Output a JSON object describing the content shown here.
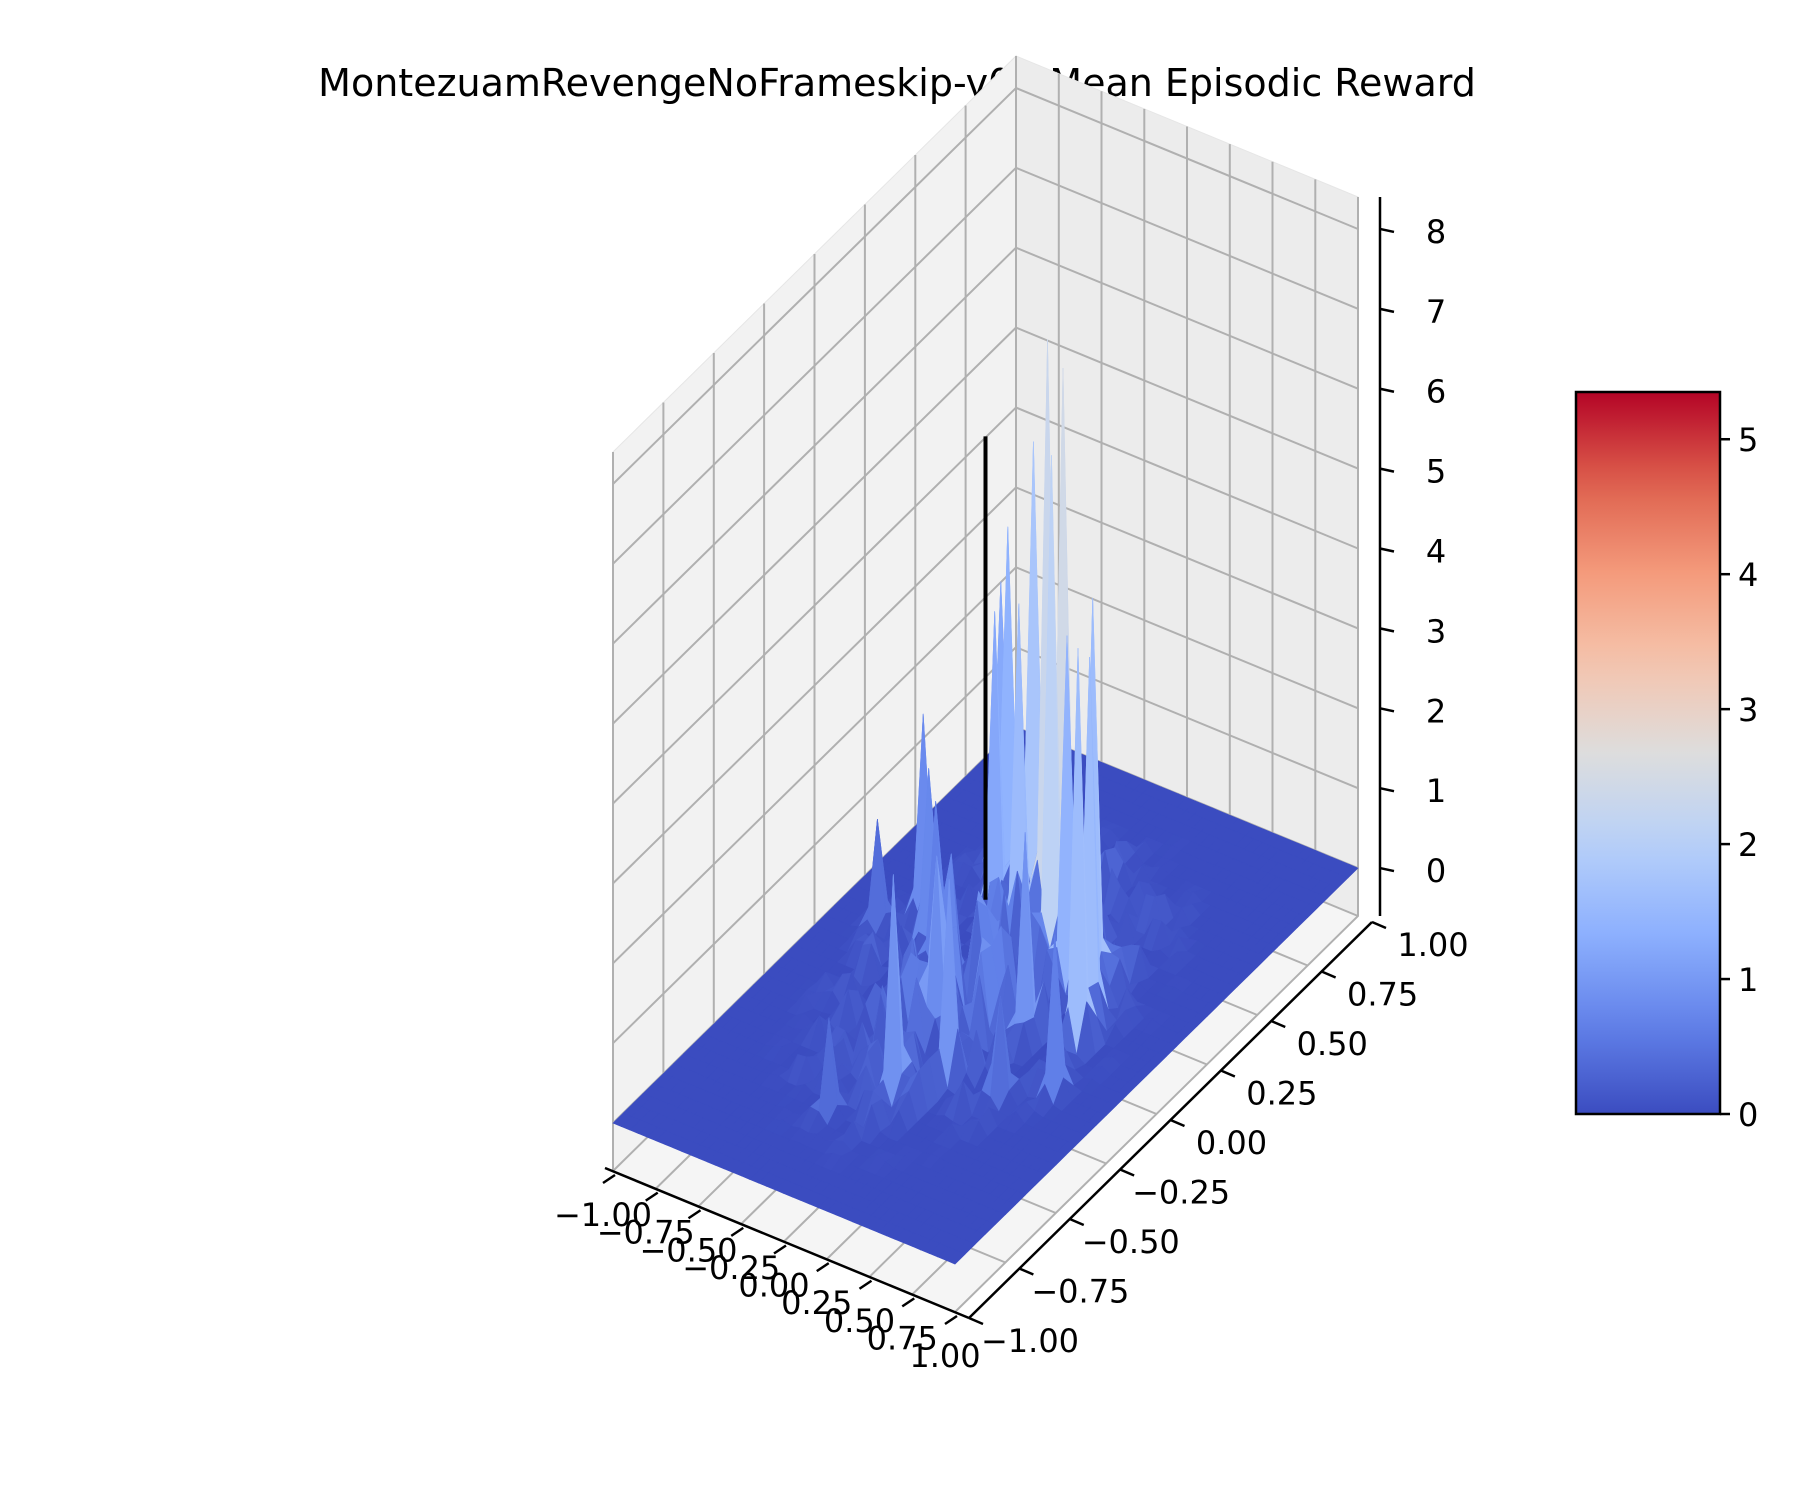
{
  "chart_data": {
    "type": "surface",
    "title": "MontezuamRevengeNoFrameskip-v0 | Mean Episodic Reward",
    "xlabel": "",
    "ylabel": "",
    "zlabel": "",
    "xlim": [
      -1.0,
      1.0
    ],
    "ylim": [
      -1.0,
      1.0
    ],
    "zlim": [
      -0.6,
      8.4
    ],
    "x_ticks": [
      "−1.00",
      "−0.75",
      "−0.50",
      "−0.25",
      "0.00",
      "0.25",
      "0.50",
      "0.75",
      "1.00"
    ],
    "y_ticks": [
      "−1.00",
      "−0.75",
      "−0.50",
      "−0.25",
      "0.00",
      "0.25",
      "0.50",
      "0.75",
      "1.00"
    ],
    "z_ticks": [
      "0",
      "1",
      "2",
      "3",
      "4",
      "5",
      "6",
      "7",
      "8"
    ],
    "colorbar": {
      "colormap": "coolwarm",
      "range": [
        0,
        5.35
      ],
      "ticks": [
        "0",
        "1",
        "2",
        "3",
        "4",
        "5"
      ]
    },
    "grid": true,
    "marker_line": {
      "x": 0.0,
      "y": 0.0,
      "z_from": 1.2,
      "z_to": 7.0,
      "color": "#000000"
    },
    "peaks": [
      {
        "x": -0.05,
        "y": 0.35,
        "z": 7.3
      },
      {
        "x": 0.1,
        "y": 0.3,
        "z": 7.2
      },
      {
        "x": 0.15,
        "y": 0.2,
        "z": 6.4
      },
      {
        "x": -0.25,
        "y": 0.45,
        "z": 5.6
      },
      {
        "x": -0.4,
        "y": 0.45,
        "z": 4.4
      },
      {
        "x": -0.5,
        "y": 0.5,
        "z": 3.5
      },
      {
        "x": 0.45,
        "y": 0.15,
        "z": 5.0
      },
      {
        "x": 0.55,
        "y": 0.05,
        "z": 4.6
      },
      {
        "x": 0.6,
        "y": -0.05,
        "z": 5.0
      },
      {
        "x": 0.3,
        "y": 0.15,
        "z": 4.4
      },
      {
        "x": -0.1,
        "y": 0.25,
        "z": 4.2
      },
      {
        "x": -0.3,
        "y": 0.3,
        "z": 3.8
      },
      {
        "x": -0.6,
        "y": 0.2,
        "z": 2.5
      },
      {
        "x": -0.45,
        "y": 0.1,
        "z": 2.2
      },
      {
        "x": 0.7,
        "y": -0.25,
        "z": 2.0
      },
      {
        "x": 0.2,
        "y": -0.35,
        "z": 2.5
      },
      {
        "x": 0.05,
        "y": -0.5,
        "z": 2.8
      },
      {
        "x": -0.05,
        "y": -0.2,
        "z": 2.2
      },
      {
        "x": -0.35,
        "y": 0.05,
        "z": 2.0
      },
      {
        "x": 0.35,
        "y": -0.1,
        "z": 2.6
      },
      {
        "x": -0.75,
        "y": 0.1,
        "z": 1.3
      },
      {
        "x": -0.15,
        "y": -0.65,
        "z": 1.2
      },
      {
        "x": 0.5,
        "y": -0.35,
        "z": 1.3
      },
      {
        "x": -0.2,
        "y": 0.0,
        "z": 1.6
      }
    ]
  }
}
